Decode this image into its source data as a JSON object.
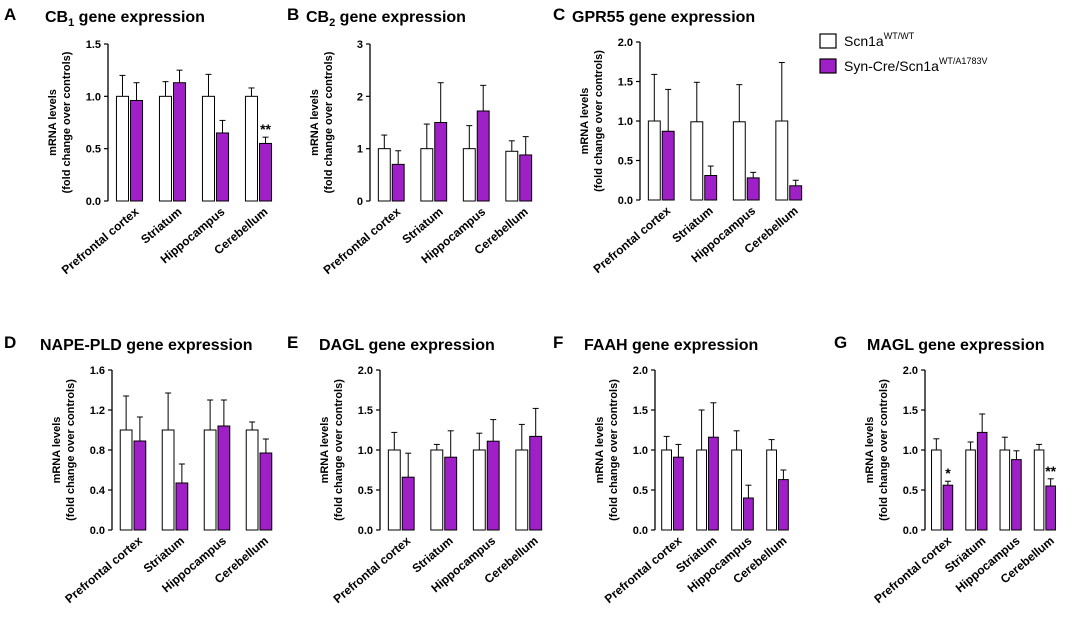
{
  "figure_legend": [
    {
      "label": "Scn1a",
      "sup": "WT/WT",
      "color": "#ffffff"
    },
    {
      "label": "Syn-Cre/Scn1a",
      "sup": "WT/A1783V",
      "color": "#a020c8"
    }
  ],
  "colors": {
    "wt": "#ffffff",
    "mut": "#a020c8",
    "axis": "#000000"
  },
  "chart_data": [
    {
      "panel": "A",
      "type": "bar",
      "title": "CB",
      "title_sub": "1",
      "title_rest": " gene expression",
      "ylabel": [
        "mRNA levels",
        "(fold change over controls)"
      ],
      "categories": [
        "Prefrontal cortex",
        "Striatum",
        "Hippocampus",
        "Cerebellum"
      ],
      "ylim": [
        0,
        1.5
      ],
      "yticks": [
        "0.0",
        "0.5",
        "1.0",
        "1.5"
      ],
      "series": [
        {
          "name": "Scn1a WT/WT",
          "values": [
            1.0,
            1.0,
            1.0,
            1.0
          ],
          "errors": [
            0.2,
            0.14,
            0.21,
            0.08
          ]
        },
        {
          "name": "Syn-Cre/Scn1a WT/A1783V",
          "values": [
            0.96,
            1.13,
            0.65,
            0.55
          ],
          "errors": [
            0.17,
            0.12,
            0.12,
            0.06
          ]
        }
      ],
      "annotations": [
        {
          "category": 3,
          "series": 1,
          "text": "**"
        }
      ]
    },
    {
      "panel": "B",
      "type": "bar",
      "title": "CB",
      "title_sub": "2",
      "title_rest": " gene expression",
      "ylabel": [
        "mRNA levels",
        "(fold change over controls)"
      ],
      "categories": [
        "Prefrontal cortex",
        "Striatum",
        "Hippocampus",
        "Cerebellum"
      ],
      "ylim": [
        0,
        3
      ],
      "yticks": [
        "0",
        "1",
        "2",
        "3"
      ],
      "series": [
        {
          "name": "Scn1a WT/WT",
          "values": [
            1.0,
            1.0,
            1.0,
            0.95
          ],
          "errors": [
            0.26,
            0.47,
            0.44,
            0.2
          ]
        },
        {
          "name": "Syn-Cre/Scn1a WT/A1783V",
          "values": [
            0.7,
            1.5,
            1.72,
            0.88
          ],
          "errors": [
            0.26,
            0.76,
            0.49,
            0.35
          ]
        }
      ],
      "annotations": []
    },
    {
      "panel": "C",
      "type": "bar",
      "title": "GPR55 gene expression",
      "title_sub": "",
      "title_rest": "",
      "ylabel": [
        "mRNA levels",
        "(fold change over controls)"
      ],
      "categories": [
        "Prefrontal cortex",
        "Striatum",
        "Hippocampus",
        "Cerebellum"
      ],
      "ylim": [
        0,
        2
      ],
      "yticks": [
        "0.0",
        "0.5",
        "1.0",
        "1.5",
        "2.0"
      ],
      "series": [
        {
          "name": "Scn1a WT/WT",
          "values": [
            1.0,
            0.99,
            0.99,
            1.0
          ],
          "errors": [
            0.59,
            0.5,
            0.47,
            0.74
          ]
        },
        {
          "name": "Syn-Cre/Scn1a WT/A1783V",
          "values": [
            0.87,
            0.31,
            0.28,
            0.18
          ],
          "errors": [
            0.53,
            0.12,
            0.07,
            0.07
          ]
        }
      ],
      "annotations": []
    },
    {
      "panel": "D",
      "type": "bar",
      "title": "NAPE-PLD gene expression",
      "title_sub": "",
      "title_rest": "",
      "ylabel": [
        "mRNA levels",
        "(fold change over controls)"
      ],
      "categories": [
        "Prefrontal cortex",
        "Striatum",
        "Hippocampus",
        "Cerebellum"
      ],
      "ylim": [
        0,
        1.6
      ],
      "yticks": [
        "0.0",
        "0.4",
        "0.8",
        "1.2",
        "1.6"
      ],
      "series": [
        {
          "name": "Scn1a WT/WT",
          "values": [
            1.0,
            1.0,
            1.0,
            1.0
          ],
          "errors": [
            0.34,
            0.37,
            0.3,
            0.08
          ]
        },
        {
          "name": "Syn-Cre/Scn1a WT/A1783V",
          "values": [
            0.89,
            0.47,
            1.04,
            0.77
          ],
          "errors": [
            0.24,
            0.19,
            0.26,
            0.14
          ]
        }
      ],
      "annotations": []
    },
    {
      "panel": "E",
      "type": "bar",
      "title": "DAGL gene expression",
      "title_sub": "",
      "title_rest": "",
      "ylabel": [
        "mRNA levels",
        "(fold change over controls)"
      ],
      "categories": [
        "Prefrontal cortex",
        "Striatum",
        "Hippocampus",
        "Cerebellum"
      ],
      "ylim": [
        0,
        2
      ],
      "yticks": [
        "0.0",
        "0.5",
        "1.0",
        "1.5",
        "2.0"
      ],
      "series": [
        {
          "name": "Scn1a WT/WT",
          "values": [
            1.0,
            1.0,
            1.0,
            1.0
          ],
          "errors": [
            0.22,
            0.07,
            0.21,
            0.32
          ]
        },
        {
          "name": "Syn-Cre/Scn1a WT/A1783V",
          "values": [
            0.66,
            0.91,
            1.11,
            1.17
          ],
          "errors": [
            0.3,
            0.33,
            0.27,
            0.35
          ]
        }
      ],
      "annotations": []
    },
    {
      "panel": "F",
      "type": "bar",
      "title": "FAAH gene expression",
      "title_sub": "",
      "title_rest": "",
      "ylabel": [
        "mRNA levels",
        "(fold change over controls)"
      ],
      "categories": [
        "Prefrontal cortex",
        "Striatum",
        "Hippocampus",
        "Cerebellum"
      ],
      "ylim": [
        0,
        2
      ],
      "yticks": [
        "0.0",
        "0.5",
        "1.0",
        "1.5",
        "2.0"
      ],
      "series": [
        {
          "name": "Scn1a WT/WT",
          "values": [
            1.0,
            1.0,
            1.0,
            1.0
          ],
          "errors": [
            0.17,
            0.5,
            0.24,
            0.13
          ]
        },
        {
          "name": "Syn-Cre/Scn1a WT/A1783V",
          "values": [
            0.91,
            1.16,
            0.4,
            0.63
          ],
          "errors": [
            0.16,
            0.43,
            0.16,
            0.12
          ]
        }
      ],
      "annotations": []
    },
    {
      "panel": "G",
      "type": "bar",
      "title": "MAGL gene expression",
      "title_sub": "",
      "title_rest": "",
      "ylabel": [
        "mRNA levels",
        "(fold change over controls)"
      ],
      "categories": [
        "Prefrontal cortex",
        "Striatum",
        "Hippocampus",
        "Cerebellum"
      ],
      "ylim": [
        0,
        2
      ],
      "yticks": [
        "0.0",
        "0.5",
        "1.0",
        "1.5",
        "2.0"
      ],
      "series": [
        {
          "name": "Scn1a WT/WT",
          "values": [
            1.0,
            1.0,
            1.0,
            1.0
          ],
          "errors": [
            0.14,
            0.1,
            0.16,
            0.07
          ]
        },
        {
          "name": "Syn-Cre/Scn1a WT/A1783V",
          "values": [
            0.56,
            1.22,
            0.88,
            0.55
          ],
          "errors": [
            0.05,
            0.23,
            0.11,
            0.09
          ]
        }
      ],
      "annotations": [
        {
          "category": 0,
          "series": 1,
          "text": "*"
        },
        {
          "category": 3,
          "series": 1,
          "text": "**"
        }
      ]
    }
  ]
}
